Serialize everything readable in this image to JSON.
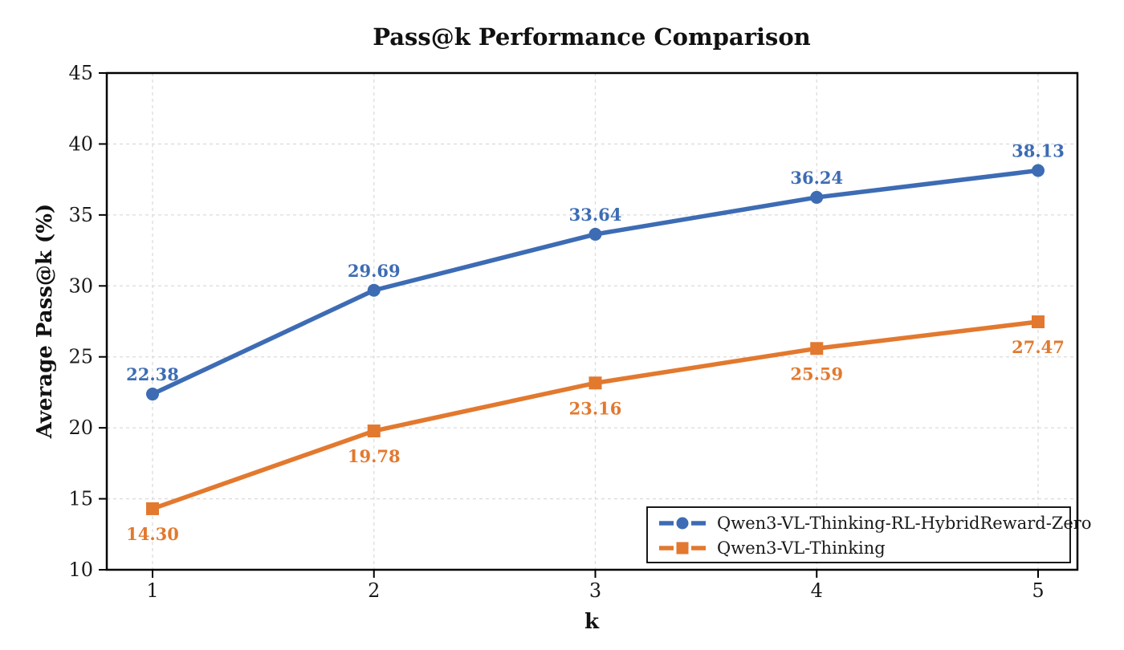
{
  "title": "Pass@k Performance Comparison",
  "chart_data": {
    "type": "line",
    "title": "Pass@k Performance Comparison",
    "xlabel": "k",
    "ylabel": "Average Pass@k (%)",
    "x": [
      1,
      2,
      3,
      4,
      5
    ],
    "xticks": [
      "1",
      "2",
      "3",
      "4",
      "5"
    ],
    "yticks": [
      10,
      15,
      20,
      25,
      30,
      35,
      40,
      45
    ],
    "ylim": [
      10,
      45
    ],
    "xlim": [
      0.79,
      5.18
    ],
    "grid": true,
    "grid_style": "dashed",
    "legend_position": "lower right",
    "value_label_format": "0.00",
    "series": [
      {
        "name": "Qwen3-VL-Thinking-RL-HybridReward-Zero",
        "values": [
          22.38,
          29.69,
          33.64,
          36.24,
          38.13
        ],
        "color": "#3d6cb4",
        "marker": "circle",
        "value_label_side": "above"
      },
      {
        "name": "Qwen3-VL-Thinking",
        "values": [
          14.3,
          19.78,
          23.16,
          25.59,
          27.47
        ],
        "color": "#e2792f",
        "marker": "square",
        "value_label_side": "below"
      }
    ],
    "colors": {
      "grid": "#dcdcdc",
      "spine": "#000000",
      "background": "#ffffff"
    }
  }
}
